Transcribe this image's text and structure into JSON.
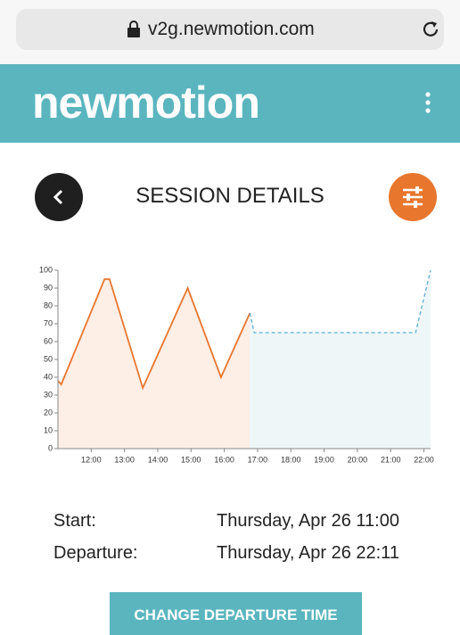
{
  "url": "v2g.newmotion.com",
  "header": {
    "logo": "newmotion"
  },
  "page_title": "SESSION DETAILS",
  "chart_data": {
    "type": "line",
    "xlim": [
      11,
      22.2
    ],
    "ylim": [
      0,
      100
    ],
    "yticks": [
      0,
      10,
      20,
      30,
      40,
      50,
      60,
      70,
      80,
      90,
      100
    ],
    "xticks": [
      {
        "value": 12,
        "label": "12:00"
      },
      {
        "value": 13,
        "label": "13:00"
      },
      {
        "value": 14,
        "label": "14:00"
      },
      {
        "value": 15,
        "label": "15:00"
      },
      {
        "value": 16,
        "label": "16:00"
      },
      {
        "value": 17,
        "label": "17:00"
      },
      {
        "value": 18,
        "label": "18:00"
      },
      {
        "value": 19,
        "label": "19:00"
      },
      {
        "value": 20,
        "label": "20:00"
      },
      {
        "value": 21,
        "label": "21:00"
      },
      {
        "value": 22,
        "label": "22:00"
      }
    ],
    "series": [
      {
        "color": "#e8762d",
        "fill": "#fdeee6",
        "style": "solid",
        "x": [
          11.0,
          11.1,
          12.4,
          12.55,
          13.55,
          14.9,
          15.9,
          16.77
        ],
        "values": [
          38,
          36,
          95,
          95,
          34,
          90,
          40,
          76
        ]
      },
      {
        "color": "#5aaed0",
        "fill": "#eef6f8",
        "style": "dashed",
        "x": [
          16.77,
          16.9,
          21.75,
          22.2
        ],
        "values": [
          76,
          65,
          65,
          100
        ]
      }
    ]
  },
  "details": [
    {
      "label": "Start:",
      "value": "Thursday, Apr 26 11:00"
    },
    {
      "label": "Departure:",
      "value": "Thursday, Apr 26 22:11"
    }
  ],
  "button": "CHANGE DEPARTURE TIME"
}
